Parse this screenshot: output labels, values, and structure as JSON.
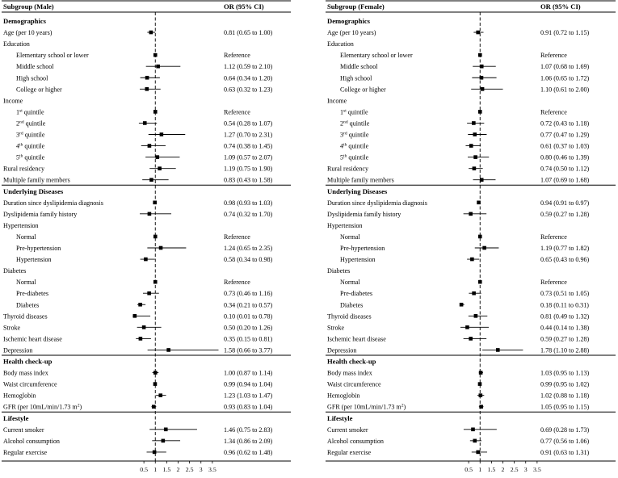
{
  "chart_data": [
    {
      "type": "forest",
      "header": {
        "subgroup": "Subgroup (Male)",
        "or": "OR (95% CI)"
      },
      "xlim": [
        0,
        4
      ],
      "reference_line": 1,
      "ticks": [
        "0.5",
        "1",
        "1.5",
        "2",
        "2.5",
        "3",
        "3.5"
      ],
      "tick_values": [
        0.5,
        1,
        1.5,
        2,
        2.5,
        3,
        3.5
      ],
      "rows": [
        {
          "kind": "section",
          "label": "Demographics"
        },
        {
          "label": "Age (per 10 years)",
          "or": 0.81,
          "lo": 0.65,
          "hi": 1.0,
          "text": "0.81 (0.65 to 1.00)"
        },
        {
          "label": "Education"
        },
        {
          "label": "Elementary school or lower",
          "indent": true,
          "or": 1,
          "ref": true,
          "text": "Reference"
        },
        {
          "label": "Middle school",
          "indent": true,
          "or": 1.12,
          "lo": 0.59,
          "hi": 2.1,
          "text": "1.12 (0.59 to 2.10)"
        },
        {
          "label": "High school",
          "indent": true,
          "or": 0.64,
          "lo": 0.34,
          "hi": 1.2,
          "text": "0.64 (0.34 to 1.20)"
        },
        {
          "label": "College or higher",
          "indent": true,
          "or": 0.63,
          "lo": 0.32,
          "hi": 1.23,
          "text": "0.63 (0.32 to 1.23)"
        },
        {
          "label": "Income"
        },
        {
          "label": "1",
          "sup": "st",
          "suffix": " quintile",
          "indent": true,
          "or": 1,
          "ref": true,
          "text": "Reference"
        },
        {
          "label": "2",
          "sup": "nd",
          "suffix": " quintile",
          "indent": true,
          "or": 0.54,
          "lo": 0.28,
          "hi": 1.07,
          "text": "0.54 (0.28 to 1.07)"
        },
        {
          "label": "3",
          "sup": "rd",
          "suffix": " quintile",
          "indent": true,
          "or": 1.27,
          "lo": 0.7,
          "hi": 2.31,
          "text": "1.27 (0.70 to 2.31)"
        },
        {
          "label": "4",
          "sup": "th",
          "suffix": " quintile",
          "indent": true,
          "or": 0.74,
          "lo": 0.38,
          "hi": 1.45,
          "text": "0.74 (0.38 to 1.45)"
        },
        {
          "label": "5",
          "sup": "th",
          "suffix": " quintile",
          "indent": true,
          "or": 1.09,
          "lo": 0.57,
          "hi": 2.07,
          "text": "1.09 (0.57 to 2.07)"
        },
        {
          "label": "Rural residency",
          "or": 1.19,
          "lo": 0.75,
          "hi": 1.9,
          "text": "1.19 (0.75 to 1.90)"
        },
        {
          "label": "Multiple family members",
          "or": 0.83,
          "lo": 0.43,
          "hi": 1.58,
          "text": "0.83 (0.43 to 1.58)"
        },
        {
          "kind": "section",
          "label": "Underlying Diseases"
        },
        {
          "label": "Duration since dyslipidemia diagnosis",
          "or": 0.98,
          "lo": 0.93,
          "hi": 1.03,
          "text": "0.98 (0.93 to 1.03)"
        },
        {
          "label": "Dyslipidemia family history",
          "or": 0.74,
          "lo": 0.32,
          "hi": 1.7,
          "text": "0.74 (0.32 to 1.70)"
        },
        {
          "label": "Hypertension"
        },
        {
          "label": "Normal",
          "indent": true,
          "or": 1,
          "ref": true,
          "text": "Reference"
        },
        {
          "label": "Pre-hypertension",
          "indent": true,
          "or": 1.24,
          "lo": 0.65,
          "hi": 2.35,
          "text": "1.24 (0.65 to 2.35)"
        },
        {
          "label": "Hypertension",
          "indent": true,
          "or": 0.58,
          "lo": 0.34,
          "hi": 0.98,
          "text": "0.58 (0.34 to 0.98)"
        },
        {
          "label": "Diabetes"
        },
        {
          "label": "Normal",
          "indent": true,
          "or": 1,
          "ref": true,
          "text": "Reference"
        },
        {
          "label": "Pre-diabetes",
          "indent": true,
          "or": 0.73,
          "lo": 0.46,
          "hi": 1.16,
          "text": "0.73 (0.46 to 1.16)"
        },
        {
          "label": "Diabetes",
          "indent": true,
          "or": 0.34,
          "lo": 0.21,
          "hi": 0.57,
          "text": "0.34 (0.21 to 0.57)"
        },
        {
          "label": "Thyroid diseases",
          "or": 0.1,
          "lo": 0.01,
          "hi": 0.78,
          "text": "0.10 (0.01 to 0.78)"
        },
        {
          "label": "Stroke",
          "or": 0.5,
          "lo": 0.2,
          "hi": 1.26,
          "text": "0.50 (0.20 to 1.26)"
        },
        {
          "label": "Ischemic heart disease",
          "or": 0.35,
          "lo": 0.15,
          "hi": 0.81,
          "text": "0.35 (0.15 to 0.81)"
        },
        {
          "label": "Depression",
          "or": 1.58,
          "lo": 0.66,
          "hi": 3.77,
          "text": "1.58 (0.66 to 3.77)"
        },
        {
          "kind": "section",
          "label": "Health check-up"
        },
        {
          "label": "Body mass index",
          "or": 1.0,
          "lo": 0.87,
          "hi": 1.14,
          "text": "1.00 (0.87 to 1.14)"
        },
        {
          "label": "Waist circumference",
          "or": 0.99,
          "lo": 0.94,
          "hi": 1.04,
          "text": "0.99 (0.94 to 1.04)"
        },
        {
          "label": "Hemoglobin",
          "or": 1.23,
          "lo": 1.03,
          "hi": 1.47,
          "text": "1.23 (1.03 to 1.47)"
        },
        {
          "label": "GFR (per 10mL/min/1.73 m",
          "sup": "2",
          "suffix": ")",
          "or": 0.93,
          "lo": 0.83,
          "hi": 1.04,
          "text": "0.93 (0.83 to 1.04)"
        },
        {
          "kind": "section",
          "label": "Lifestyle"
        },
        {
          "label": "Current smoker",
          "or": 1.46,
          "lo": 0.75,
          "hi": 2.83,
          "text": "1.46 (0.75 to 2.83)"
        },
        {
          "label": "Alcohol consumption",
          "or": 1.34,
          "lo": 0.86,
          "hi": 2.09,
          "text": "1.34 (0.86 to 2.09)"
        },
        {
          "label": "Regular exercise",
          "or": 0.96,
          "lo": 0.62,
          "hi": 1.48,
          "text": "0.96 (0.62 to 1.48)"
        }
      ]
    },
    {
      "type": "forest",
      "header": {
        "subgroup": "Subgroup (Female)",
        "or": "OR (95% CI)"
      },
      "xlim": [
        0,
        4
      ],
      "reference_line": 1,
      "ticks": [
        "0.5",
        "1",
        "1.5",
        "2",
        "2.5",
        "3",
        "3.5"
      ],
      "tick_values": [
        0.5,
        1,
        1.5,
        2,
        2.5,
        3,
        3.5
      ],
      "rows": [
        {
          "kind": "section",
          "label": "Demographics"
        },
        {
          "label": "Age (per 10 years)",
          "or": 0.91,
          "lo": 0.72,
          "hi": 1.15,
          "text": "0.91 (0.72 to 1.15)"
        },
        {
          "label": "Education"
        },
        {
          "label": "Elementary school or lower",
          "indent": true,
          "or": 1,
          "ref": true,
          "text": "Reference"
        },
        {
          "label": "Middle school",
          "indent": true,
          "or": 1.07,
          "lo": 0.68,
          "hi": 1.69,
          "text": "1.07 (0.68 to 1.69)"
        },
        {
          "label": "High school",
          "indent": true,
          "or": 1.06,
          "lo": 0.65,
          "hi": 1.72,
          "text": "1.06 (0.65 to 1.72)"
        },
        {
          "label": "College or higher",
          "indent": true,
          "or": 1.1,
          "lo": 0.61,
          "hi": 2.0,
          "text": "1.10 (0.61 to 2.00)"
        },
        {
          "label": "Income"
        },
        {
          "label": "1",
          "sup": "st",
          "suffix": " quintile",
          "indent": true,
          "or": 1,
          "ref": true,
          "text": "Reference"
        },
        {
          "label": "2",
          "sup": "nd",
          "suffix": " quintile",
          "indent": true,
          "or": 0.72,
          "lo": 0.43,
          "hi": 1.18,
          "text": "0.72 (0.43 to 1.18)"
        },
        {
          "label": "3",
          "sup": "rd",
          "suffix": " quintile",
          "indent": true,
          "or": 0.77,
          "lo": 0.47,
          "hi": 1.29,
          "text": "0.77 (0.47 to 1.29)"
        },
        {
          "label": "4",
          "sup": "th",
          "suffix": " quintile",
          "indent": true,
          "or": 0.61,
          "lo": 0.37,
          "hi": 1.03,
          "text": "0.61 (0.37 to 1.03)"
        },
        {
          "label": "5",
          "sup": "th",
          "suffix": " quintile",
          "indent": true,
          "or": 0.8,
          "lo": 0.46,
          "hi": 1.39,
          "text": "0.80 (0.46 to 1.39)"
        },
        {
          "label": "Rural residency",
          "or": 0.74,
          "lo": 0.5,
          "hi": 1.12,
          "text": "0.74 (0.50 to 1.12)"
        },
        {
          "label": "Multiple family members",
          "or": 1.07,
          "lo": 0.69,
          "hi": 1.68,
          "text": "1.07 (0.69 to 1.68)"
        },
        {
          "kind": "section",
          "label": "Underlying Diseases"
        },
        {
          "label": "Duration since dyslipidemia diagnosis",
          "or": 0.94,
          "lo": 0.91,
          "hi": 0.97,
          "text": "0.94 (0.91 to 0.97)"
        },
        {
          "label": "Dyslipidemia family history",
          "or": 0.59,
          "lo": 0.27,
          "hi": 1.28,
          "text": "0.59 (0.27 to 1.28)"
        },
        {
          "label": "Hypertension"
        },
        {
          "label": "Normal",
          "indent": true,
          "or": 1,
          "ref": true,
          "text": "Reference"
        },
        {
          "label": "Pre-hypertension",
          "indent": true,
          "or": 1.19,
          "lo": 0.77,
          "hi": 1.82,
          "text": "1.19 (0.77 to 1.82)"
        },
        {
          "label": "Hypertension",
          "indent": true,
          "or": 0.65,
          "lo": 0.43,
          "hi": 0.96,
          "text": "0.65 (0.43 to 0.96)"
        },
        {
          "label": "Diabetes"
        },
        {
          "label": "Normal",
          "indent": true,
          "or": 1,
          "ref": true,
          "text": "Reference"
        },
        {
          "label": "Pre-diabetes",
          "indent": true,
          "or": 0.73,
          "lo": 0.51,
          "hi": 1.05,
          "text": "0.73 (0.51 to 1.05)"
        },
        {
          "label": "Diabetes",
          "indent": true,
          "or": 0.18,
          "lo": 0.11,
          "hi": 0.31,
          "text": "0.18 (0.11 to 0.31)"
        },
        {
          "label": "Thyroid diseases",
          "or": 0.81,
          "lo": 0.49,
          "hi": 1.32,
          "text": "0.81 (0.49 to 1.32)"
        },
        {
          "label": "Stroke",
          "or": 0.44,
          "lo": 0.14,
          "hi": 1.38,
          "text": "0.44 (0.14 to 1.38)"
        },
        {
          "label": "Ischemic heart disease",
          "or": 0.59,
          "lo": 0.27,
          "hi": 1.28,
          "text": "0.59 (0.27 to 1.28)"
        },
        {
          "label": "Depression",
          "or": 1.78,
          "lo": 1.1,
          "hi": 2.88,
          "text": "1.78 (1.10 to 2.88)"
        },
        {
          "kind": "section",
          "label": "Health check-up"
        },
        {
          "label": "Body mass index",
          "or": 1.03,
          "lo": 0.95,
          "hi": 1.13,
          "text": "1.03 (0.95 to 1.13)"
        },
        {
          "label": "Waist circumference",
          "or": 0.99,
          "lo": 0.95,
          "hi": 1.02,
          "text": "0.99 (0.95 to 1.02)"
        },
        {
          "label": "Hemoglobin",
          "or": 1.02,
          "lo": 0.88,
          "hi": 1.18,
          "text": "1.02 (0.88 to 1.18)"
        },
        {
          "label": "GFR (per 10mL/min/1.73 m",
          "sup": "2",
          "suffix": ")",
          "or": 1.05,
          "lo": 0.95,
          "hi": 1.15,
          "text": "1.05 (0.95 to 1.15)"
        },
        {
          "kind": "section",
          "label": "Lifestyle"
        },
        {
          "label": "Current smoker",
          "or": 0.69,
          "lo": 0.28,
          "hi": 1.73,
          "text": "0.69 (0.28 to 1.73)"
        },
        {
          "label": "Alcohol consumption",
          "or": 0.77,
          "lo": 0.56,
          "hi": 1.06,
          "text": "0.77 (0.56 to 1.06)"
        },
        {
          "label": "Regular exercise",
          "or": 0.91,
          "lo": 0.63,
          "hi": 1.31,
          "text": "0.91 (0.63 to 1.31)"
        }
      ]
    }
  ]
}
